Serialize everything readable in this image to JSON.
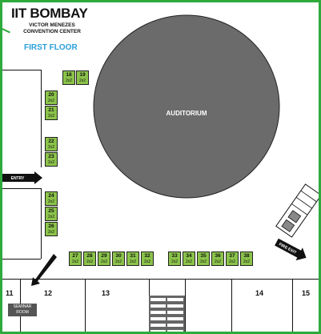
{
  "header": {
    "title": "IIT BOMBAY",
    "subtitle": "VICTOR MENEZES CONVENTION CENTER",
    "floor": "FIRST FLOOR"
  },
  "auditorium": {
    "label": "AUDITORIUM"
  },
  "arrows": {
    "entry": "ENTRY",
    "fire_exit": "FIRE EXIT"
  },
  "stall_size": "2x2",
  "stalls": [
    "18",
    "19",
    "20",
    "21",
    "22",
    "23",
    "24",
    "25",
    "26",
    "27",
    "28",
    "29",
    "30",
    "31",
    "32",
    "33",
    "34",
    "35",
    "36",
    "37",
    "38"
  ],
  "rooms": {
    "r11": "11",
    "r12": "12",
    "r13": "13",
    "r14": "14",
    "r15": "15"
  },
  "seminar_room": {
    "line1": "SEMINAR",
    "line2": "ROOM"
  },
  "colors": {
    "border": "#2eaa3c",
    "stall": "#8bc34a",
    "auditorium": "#6b6b6b",
    "floor_label": "#2a9fd8"
  }
}
